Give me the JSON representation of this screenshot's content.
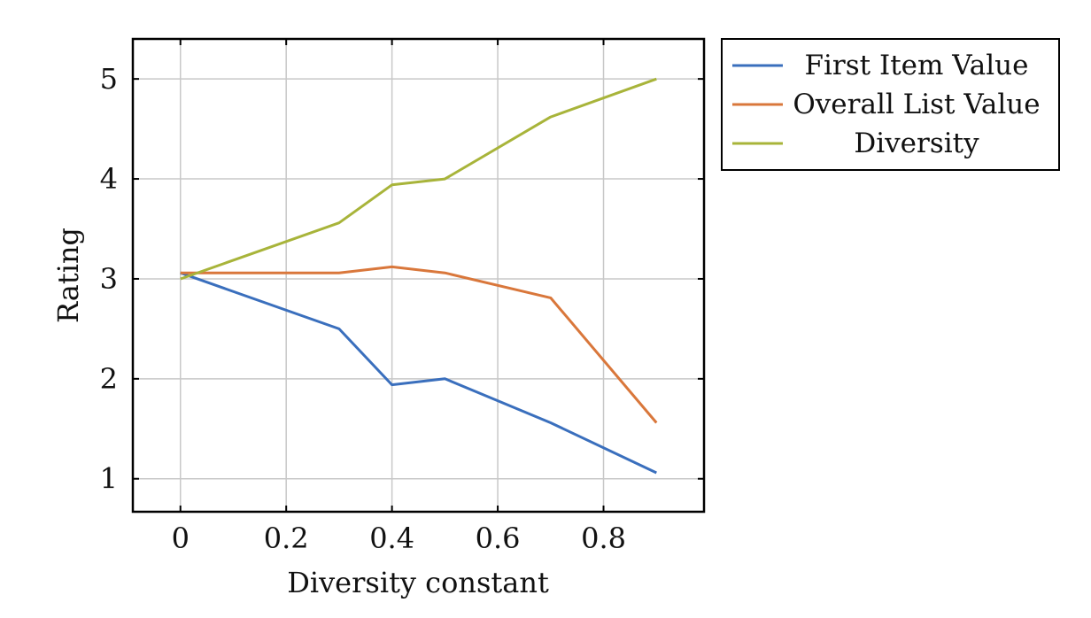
{
  "chart_data": {
    "type": "line",
    "xlabel": "Diversity constant",
    "ylabel": "Rating",
    "xlim": [
      -0.09,
      0.99
    ],
    "ylim": [
      0.67,
      5.4
    ],
    "x_ticks": [
      0,
      0.2,
      0.4,
      0.6,
      0.8
    ],
    "x_tick_labels": [
      "0",
      "0.2",
      "0.4",
      "0.6",
      "0.8"
    ],
    "y_ticks": [
      1,
      2,
      3,
      4,
      5
    ],
    "y_tick_labels": [
      "1",
      "2",
      "3",
      "4",
      "5"
    ],
    "grid": true,
    "legend_position": "outside-top-right",
    "x": [
      0,
      0.3,
      0.4,
      0.5,
      0.7,
      0.9
    ],
    "series": [
      {
        "name": "First Item Value",
        "color": "#3a6fbd",
        "values": [
          3.06,
          2.5,
          1.94,
          2.0,
          1.56,
          1.06
        ]
      },
      {
        "name": "Overall List Value",
        "color": "#d9773b",
        "values": [
          3.06,
          3.06,
          3.12,
          3.06,
          2.81,
          1.56
        ]
      },
      {
        "name": "Diversity",
        "color": "#a8b43a",
        "values": [
          3.0,
          3.56,
          3.94,
          4.0,
          4.62,
          5.0
        ]
      }
    ]
  }
}
